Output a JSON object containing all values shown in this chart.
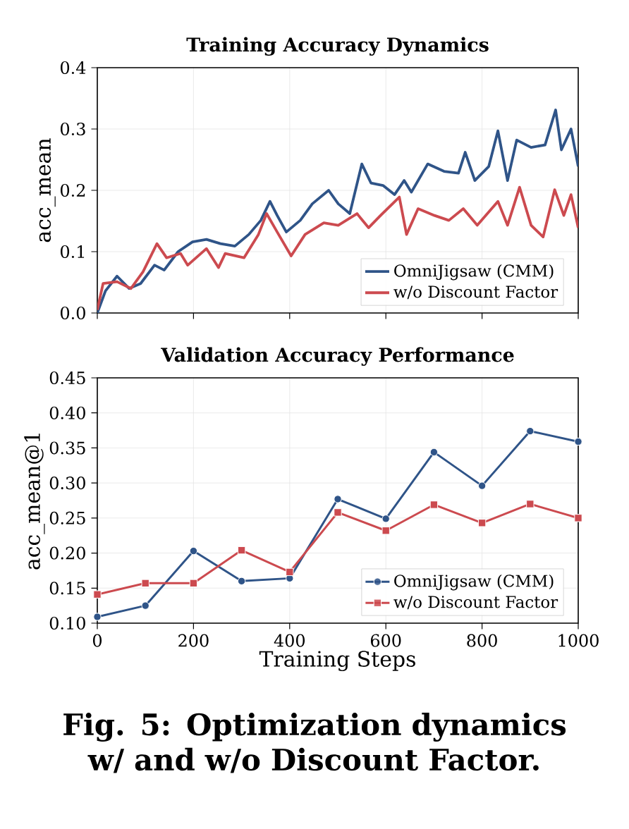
{
  "chart_data": [
    {
      "type": "line",
      "title": "Training Accuracy Dynamics",
      "ylabel": "acc_mean",
      "xlim": [
        0,
        1000
      ],
      "ylim": [
        0,
        0.4
      ],
      "xticks": [
        0,
        200,
        400,
        600,
        800,
        1000
      ],
      "yticks": [
        {
          "value": 0,
          "label": "0.0"
        },
        {
          "value": 0.1,
          "label": "0.1"
        },
        {
          "value": 0.2,
          "label": "0.2"
        },
        {
          "value": 0.3,
          "label": "0.3"
        },
        {
          "value": 0.4,
          "label": "0.4"
        }
      ],
      "tick_labels": "y",
      "grid": true,
      "legend": "bottom right",
      "series": [
        {
          "name": "OmniJigsaw (CMM)",
          "color": "#2f5488",
          "x": [
            0,
            17,
            41,
            66,
            90,
            119,
            139,
            168,
            198,
            227,
            256,
            286,
            315,
            340,
            359,
            374,
            393,
            422,
            447,
            481,
            501,
            525,
            550,
            569,
            594,
            618,
            638,
            653,
            687,
            721,
            751,
            765,
            785,
            814,
            833,
            853,
            872,
            902,
            931,
            953,
            965,
            985,
            1000
          ],
          "values": [
            0.0,
            0.036,
            0.06,
            0.04,
            0.048,
            0.078,
            0.07,
            0.1,
            0.116,
            0.12,
            0.113,
            0.109,
            0.128,
            0.151,
            0.182,
            0.159,
            0.132,
            0.151,
            0.178,
            0.2,
            0.178,
            0.162,
            0.243,
            0.212,
            0.208,
            0.193,
            0.216,
            0.197,
            0.243,
            0.231,
            0.228,
            0.262,
            0.216,
            0.239,
            0.297,
            0.216,
            0.282,
            0.27,
            0.274,
            0.331,
            0.266,
            0.3,
            0.239
          ]
        },
        {
          "name": "w/o Discount Factor",
          "color": "#cc4a4f",
          "x": [
            0,
            12,
            41,
            70,
            95,
            124,
            144,
            173,
            188,
            227,
            252,
            266,
            305,
            335,
            352,
            374,
            403,
            432,
            471,
            501,
            540,
            564,
            589,
            628,
            643,
            667,
            701,
            731,
            761,
            790,
            833,
            853,
            878,
            902,
            927,
            951,
            970,
            985,
            1000
          ],
          "values": [
            0.005,
            0.048,
            0.051,
            0.04,
            0.067,
            0.113,
            0.09,
            0.097,
            0.078,
            0.105,
            0.074,
            0.097,
            0.09,
            0.128,
            0.162,
            0.132,
            0.093,
            0.128,
            0.147,
            0.143,
            0.162,
            0.139,
            0.159,
            0.189,
            0.128,
            0.17,
            0.159,
            0.151,
            0.17,
            0.143,
            0.182,
            0.143,
            0.205,
            0.143,
            0.124,
            0.201,
            0.159,
            0.193,
            0.139
          ]
        }
      ]
    },
    {
      "type": "line",
      "title": "Validation Accuracy Performance",
      "xlabel": "Training Steps",
      "ylabel": "acc_mean@1",
      "xlim": [
        0,
        1000
      ],
      "ylim": [
        0.1,
        0.45
      ],
      "xticks": [
        0,
        200,
        400,
        600,
        800,
        1000
      ],
      "yticks": [
        {
          "value": 0.1,
          "label": "0.10"
        },
        {
          "value": 0.15,
          "label": "0.15"
        },
        {
          "value": 0.2,
          "label": "0.20"
        },
        {
          "value": 0.25,
          "label": "0.25"
        },
        {
          "value": 0.3,
          "label": "0.30"
        },
        {
          "value": 0.35,
          "label": "0.35"
        },
        {
          "value": 0.4,
          "label": "0.40"
        },
        {
          "value": 0.45,
          "label": "0.45"
        }
      ],
      "grid": true,
      "legend": "bottom right",
      "x": [
        0,
        100,
        200,
        300,
        400,
        500,
        600,
        700,
        800,
        900,
        1000
      ],
      "series": [
        {
          "name": "OmniJigsaw (CMM)",
          "color": "#2f5488",
          "marker": "circle",
          "values": [
            0.109,
            0.125,
            0.203,
            0.16,
            0.164,
            0.277,
            0.249,
            0.344,
            0.296,
            0.374,
            0.359
          ]
        },
        {
          "name": "w/o Discount Factor",
          "color": "#cc4a4f",
          "marker": "square",
          "values": [
            0.141,
            0.157,
            0.157,
            0.204,
            0.173,
            0.258,
            0.232,
            0.269,
            0.243,
            0.27,
            0.25
          ]
        }
      ],
      "annotations": [
        "**Fig. 5: Optimization dynamics w/ and w/o Discount Factor.**"
      ]
    }
  ]
}
